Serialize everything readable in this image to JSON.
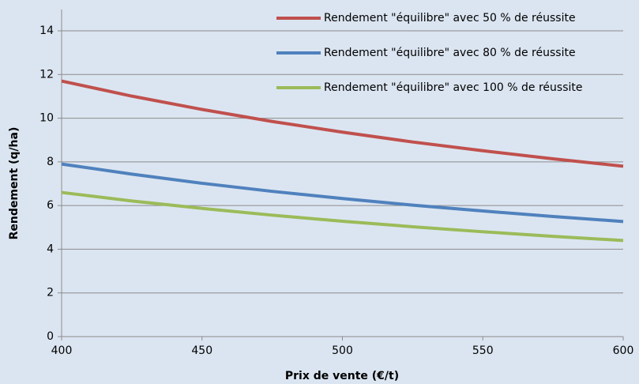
{
  "chart_data": {
    "type": "line",
    "x": [
      400,
      425,
      450,
      475,
      500,
      525,
      550,
      575,
      600
    ],
    "series": [
      {
        "name": "Rendement \"équilibre\" avec 50 % de réussite",
        "color": "#c0504d",
        "values": [
          11.7,
          11.01,
          10.4,
          9.85,
          9.36,
          8.91,
          8.51,
          8.14,
          7.8
        ]
      },
      {
        "name": "Rendement \"équilibre\" avec 80 % de réussite",
        "color": "#4f81bd",
        "values": [
          7.9,
          7.44,
          7.02,
          6.65,
          6.32,
          6.02,
          5.75,
          5.5,
          5.27
        ]
      },
      {
        "name": "Rendement \"équilibre\" avec 100 % de réussite",
        "color": "#9bbb59",
        "values": [
          6.6,
          6.21,
          5.87,
          5.56,
          5.28,
          5.03,
          4.8,
          4.59,
          4.4
        ]
      }
    ],
    "x_label": "Prix de vente (€/t)",
    "y_label": "Rendement (q/ha)",
    "xlim": [
      400,
      600
    ],
    "xticks": [
      400,
      450,
      500,
      550,
      600
    ],
    "ylim": [
      0,
      14
    ],
    "yticks": [
      0,
      2,
      4,
      6,
      8,
      10,
      12,
      14
    ],
    "grid": true,
    "legend": "top-right"
  }
}
